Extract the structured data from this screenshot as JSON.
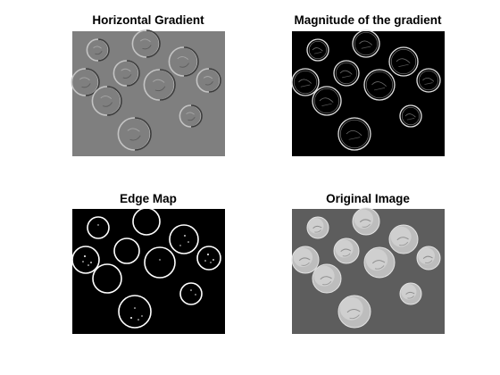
{
  "figure": {
    "background": "#ffffff",
    "subplots": [
      {
        "id": "horizontal-gradient",
        "title": "Horizontal Gradient",
        "render_mode": "gradient-x",
        "background_color": "#7f7f7f"
      },
      {
        "id": "gradient-magnitude",
        "title": "Magnitude of the gradient",
        "render_mode": "magnitude",
        "background_color": "#000000"
      },
      {
        "id": "edge-map",
        "title": "Edge Map",
        "render_mode": "edges",
        "background_color": "#000000"
      },
      {
        "id": "original-image",
        "title": "Original Image",
        "render_mode": "original",
        "background_color": "#5d5d5d"
      }
    ]
  }
}
